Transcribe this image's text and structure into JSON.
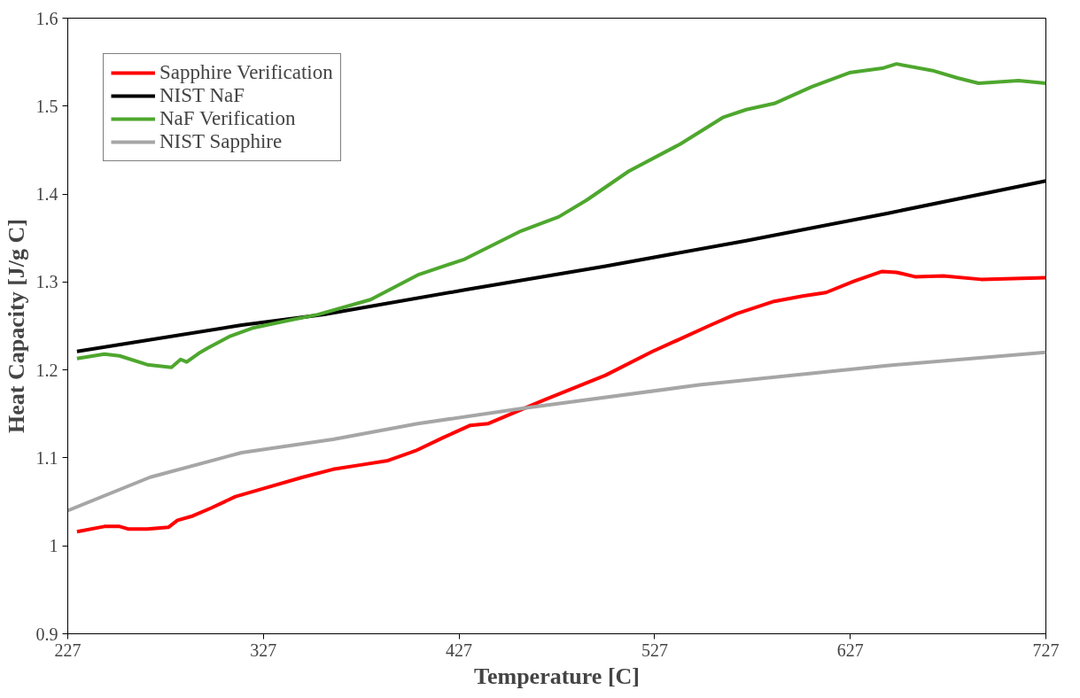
{
  "chart_data": {
    "type": "line",
    "xlabel": "Temperature [C]",
    "ylabel": "Heat Capacity [J/g C]",
    "xlim": [
      227,
      727
    ],
    "ylim": [
      0.9,
      1.6
    ],
    "xticks": [
      227,
      327,
      427,
      527,
      627,
      727
    ],
    "yticks": [
      0.9,
      1,
      1.1,
      1.2,
      1.3,
      1.4,
      1.5,
      1.6
    ],
    "grid": false,
    "legend": "top left",
    "marker": "none",
    "line_style": "solid",
    "series": [
      {
        "name": "Sapphire Verification",
        "color": "#ff0000",
        "x": [
          231.7,
          245.7,
          253.5,
          258.2,
          267.6,
          278.4,
          283.1,
          290.9,
          300.3,
          312.7,
          328.4,
          347.1,
          362.6,
          376.7,
          390.7,
          404.7,
          418.8,
          432.8,
          442.0,
          470.7,
          501.9,
          525.9,
          554.6,
          568.9,
          588.1,
          602.6,
          614.6,
          629.0,
          643.3,
          650.6,
          660.1,
          674.6,
          693.8,
          727
        ],
        "values": [
          1.016,
          1.022,
          1.022,
          1.019,
          1.019,
          1.021,
          1.029,
          1.034,
          1.043,
          1.056,
          1.066,
          1.078,
          1.087,
          1.092,
          1.097,
          1.108,
          1.123,
          1.137,
          1.139,
          1.166,
          1.194,
          1.221,
          1.25,
          1.264,
          1.278,
          1.284,
          1.288,
          1.301,
          1.312,
          1.311,
          1.306,
          1.307,
          1.303,
          1.305
        ]
      },
      {
        "name": "NIST NaF",
        "color": "#000000",
        "x": [
          231.7,
          315.9,
          358,
          429.9,
          501.9,
          573.8,
          645.8,
          727
        ],
        "values": [
          1.221,
          1.251,
          1.263,
          1.291,
          1.318,
          1.347,
          1.378,
          1.415
        ]
      },
      {
        "name": "NaF Verification",
        "color": "#4ea72e",
        "x": [
          231.7,
          245.7,
          253.5,
          267.6,
          280,
          284.7,
          287.8,
          294,
          298.7,
          309.6,
          322.1,
          339.3,
          354.8,
          381.8,
          405.9,
          429.9,
          458.7,
          477.9,
          492.2,
          513.8,
          540.2,
          561.8,
          573.8,
          588.2,
          607.4,
          626.6,
          643.4,
          650.6,
          669.8,
          681.8,
          692.6,
          713,
          727
        ],
        "values": [
          1.213,
          1.218,
          1.216,
          1.206,
          1.203,
          1.212,
          1.209,
          1.219,
          1.225,
          1.238,
          1.248,
          1.256,
          1.263,
          1.28,
          1.308,
          1.326,
          1.358,
          1.374,
          1.393,
          1.426,
          1.457,
          1.487,
          1.496,
          1.503,
          1.522,
          1.538,
          1.543,
          1.548,
          1.54,
          1.532,
          1.526,
          1.529,
          1.526
        ]
      },
      {
        "name": "NIST Sapphire",
        "color": "#a6a6a6",
        "x": [
          227,
          269.1,
          315.9,
          362.6,
          405.9,
          458.7,
          549.7,
          645.8,
          727
        ],
        "values": [
          1.04,
          1.078,
          1.106,
          1.121,
          1.139,
          1.156,
          1.183,
          1.205,
          1.22
        ]
      }
    ]
  }
}
